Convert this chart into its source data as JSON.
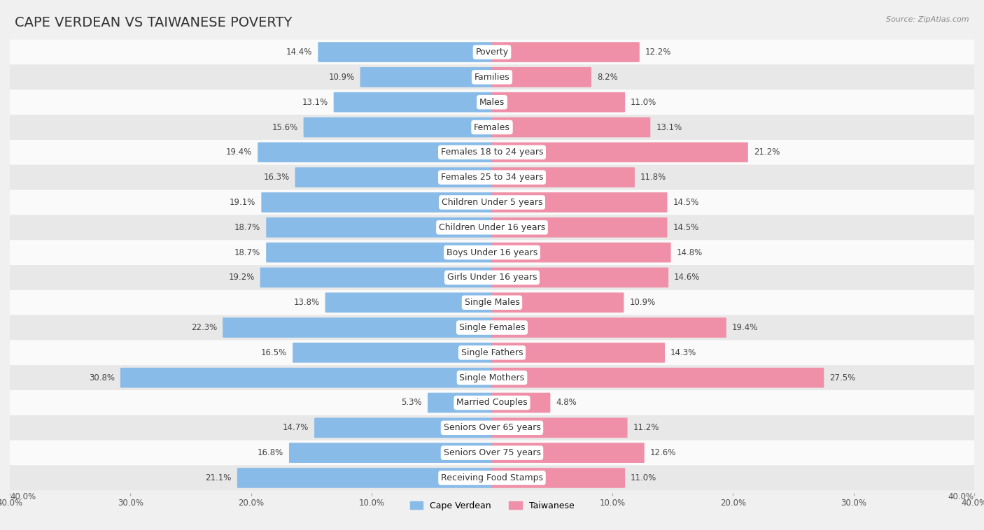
{
  "title": "CAPE VERDEAN VS TAIWANESE POVERTY",
  "source": "Source: ZipAtlas.com",
  "categories": [
    "Poverty",
    "Families",
    "Males",
    "Females",
    "Females 18 to 24 years",
    "Females 25 to 34 years",
    "Children Under 5 years",
    "Children Under 16 years",
    "Boys Under 16 years",
    "Girls Under 16 years",
    "Single Males",
    "Single Females",
    "Single Fathers",
    "Single Mothers",
    "Married Couples",
    "Seniors Over 65 years",
    "Seniors Over 75 years",
    "Receiving Food Stamps"
  ],
  "cape_verdean": [
    14.4,
    10.9,
    13.1,
    15.6,
    19.4,
    16.3,
    19.1,
    18.7,
    18.7,
    19.2,
    13.8,
    22.3,
    16.5,
    30.8,
    5.3,
    14.7,
    16.8,
    21.1
  ],
  "taiwanese": [
    12.2,
    8.2,
    11.0,
    13.1,
    21.2,
    11.8,
    14.5,
    14.5,
    14.8,
    14.6,
    10.9,
    19.4,
    14.3,
    27.5,
    4.8,
    11.2,
    12.6,
    11.0
  ],
  "cape_verdean_color": "#88bbe8",
  "taiwanese_color": "#f090a8",
  "background_color": "#f0f0f0",
  "row_bg_light": "#fafafa",
  "row_bg_dark": "#e8e8e8",
  "axis_max": 40.0,
  "bar_height": 0.72,
  "title_fontsize": 14,
  "label_fontsize": 9,
  "value_fontsize": 8.5
}
